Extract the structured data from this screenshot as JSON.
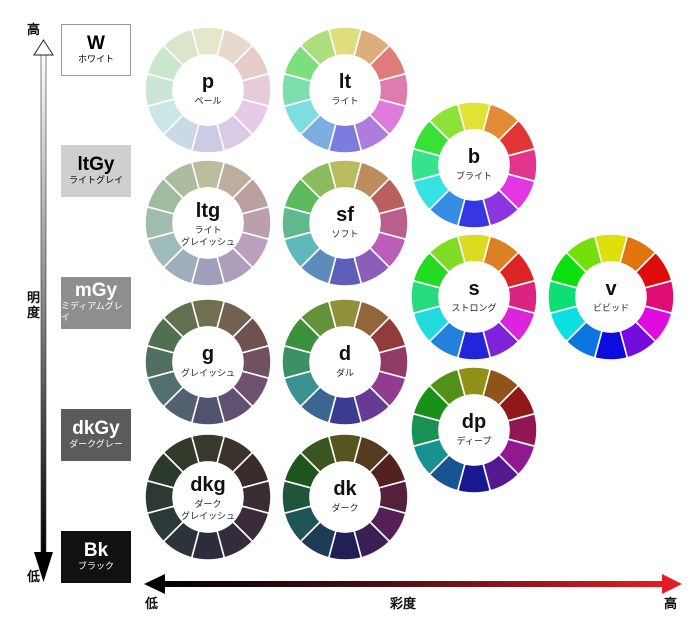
{
  "axes": {
    "vertical": {
      "label": "明度",
      "high": "高",
      "low": "低"
    },
    "horizontal": {
      "label": "彩度",
      "low": "低",
      "high": "高"
    }
  },
  "grays": [
    {
      "code": "W",
      "name": "ホワイト",
      "bg": "#ffffff",
      "fg": "#111111"
    },
    {
      "code": "ltGy",
      "name": "ライトグレイ",
      "bg": "#cfcfcf",
      "fg": "#111111"
    },
    {
      "code": "mGy",
      "name": "ミディアムグレイ",
      "bg": "#8e8e8e",
      "fg": "#ffffff"
    },
    {
      "code": "dkGy",
      "name": "ダークグレー",
      "bg": "#5b5b5b",
      "fg": "#ffffff"
    },
    {
      "code": "Bk",
      "name": "ブラック",
      "bg": "#111111",
      "fg": "#ffffff"
    }
  ],
  "tones": [
    {
      "code": "p",
      "name": "ペール",
      "saturation": 0.35,
      "light": 0.85,
      "hueShift": 0
    },
    {
      "code": "lt",
      "name": "ライト",
      "saturation": 0.6,
      "light": 0.68,
      "hueShift": 0
    },
    {
      "code": "b",
      "name": "ブライト",
      "saturation": 0.75,
      "light": 0.55,
      "hueShift": 0
    },
    {
      "code": "ltg",
      "name": "ライト グレイッシュ",
      "saturation": 0.18,
      "light": 0.68,
      "hueShift": 0
    },
    {
      "code": "sf",
      "name": "ソフト",
      "saturation": 0.4,
      "light": 0.55,
      "hueShift": 0
    },
    {
      "code": "s",
      "name": "ストロング",
      "saturation": 0.72,
      "light": 0.5,
      "hueShift": 0
    },
    {
      "code": "v",
      "name": "ビビッド",
      "saturation": 0.9,
      "light": 0.46,
      "hueShift": 0
    },
    {
      "code": "g",
      "name": "グレイッシュ",
      "saturation": 0.16,
      "light": 0.38,
      "hueShift": 0
    },
    {
      "code": "d",
      "name": "ダル",
      "saturation": 0.42,
      "light": 0.4,
      "hueShift": 0
    },
    {
      "code": "dp",
      "name": "ディープ",
      "saturation": 0.72,
      "light": 0.33,
      "hueShift": 0
    },
    {
      "code": "dkg",
      "name": "ダーク グレイッシュ",
      "saturation": 0.14,
      "light": 0.2,
      "hueShift": 0
    },
    {
      "code": "dk",
      "name": "ダーク",
      "saturation": 0.45,
      "light": 0.23,
      "hueShift": 0
    }
  ],
  "hueSegments": 12
}
